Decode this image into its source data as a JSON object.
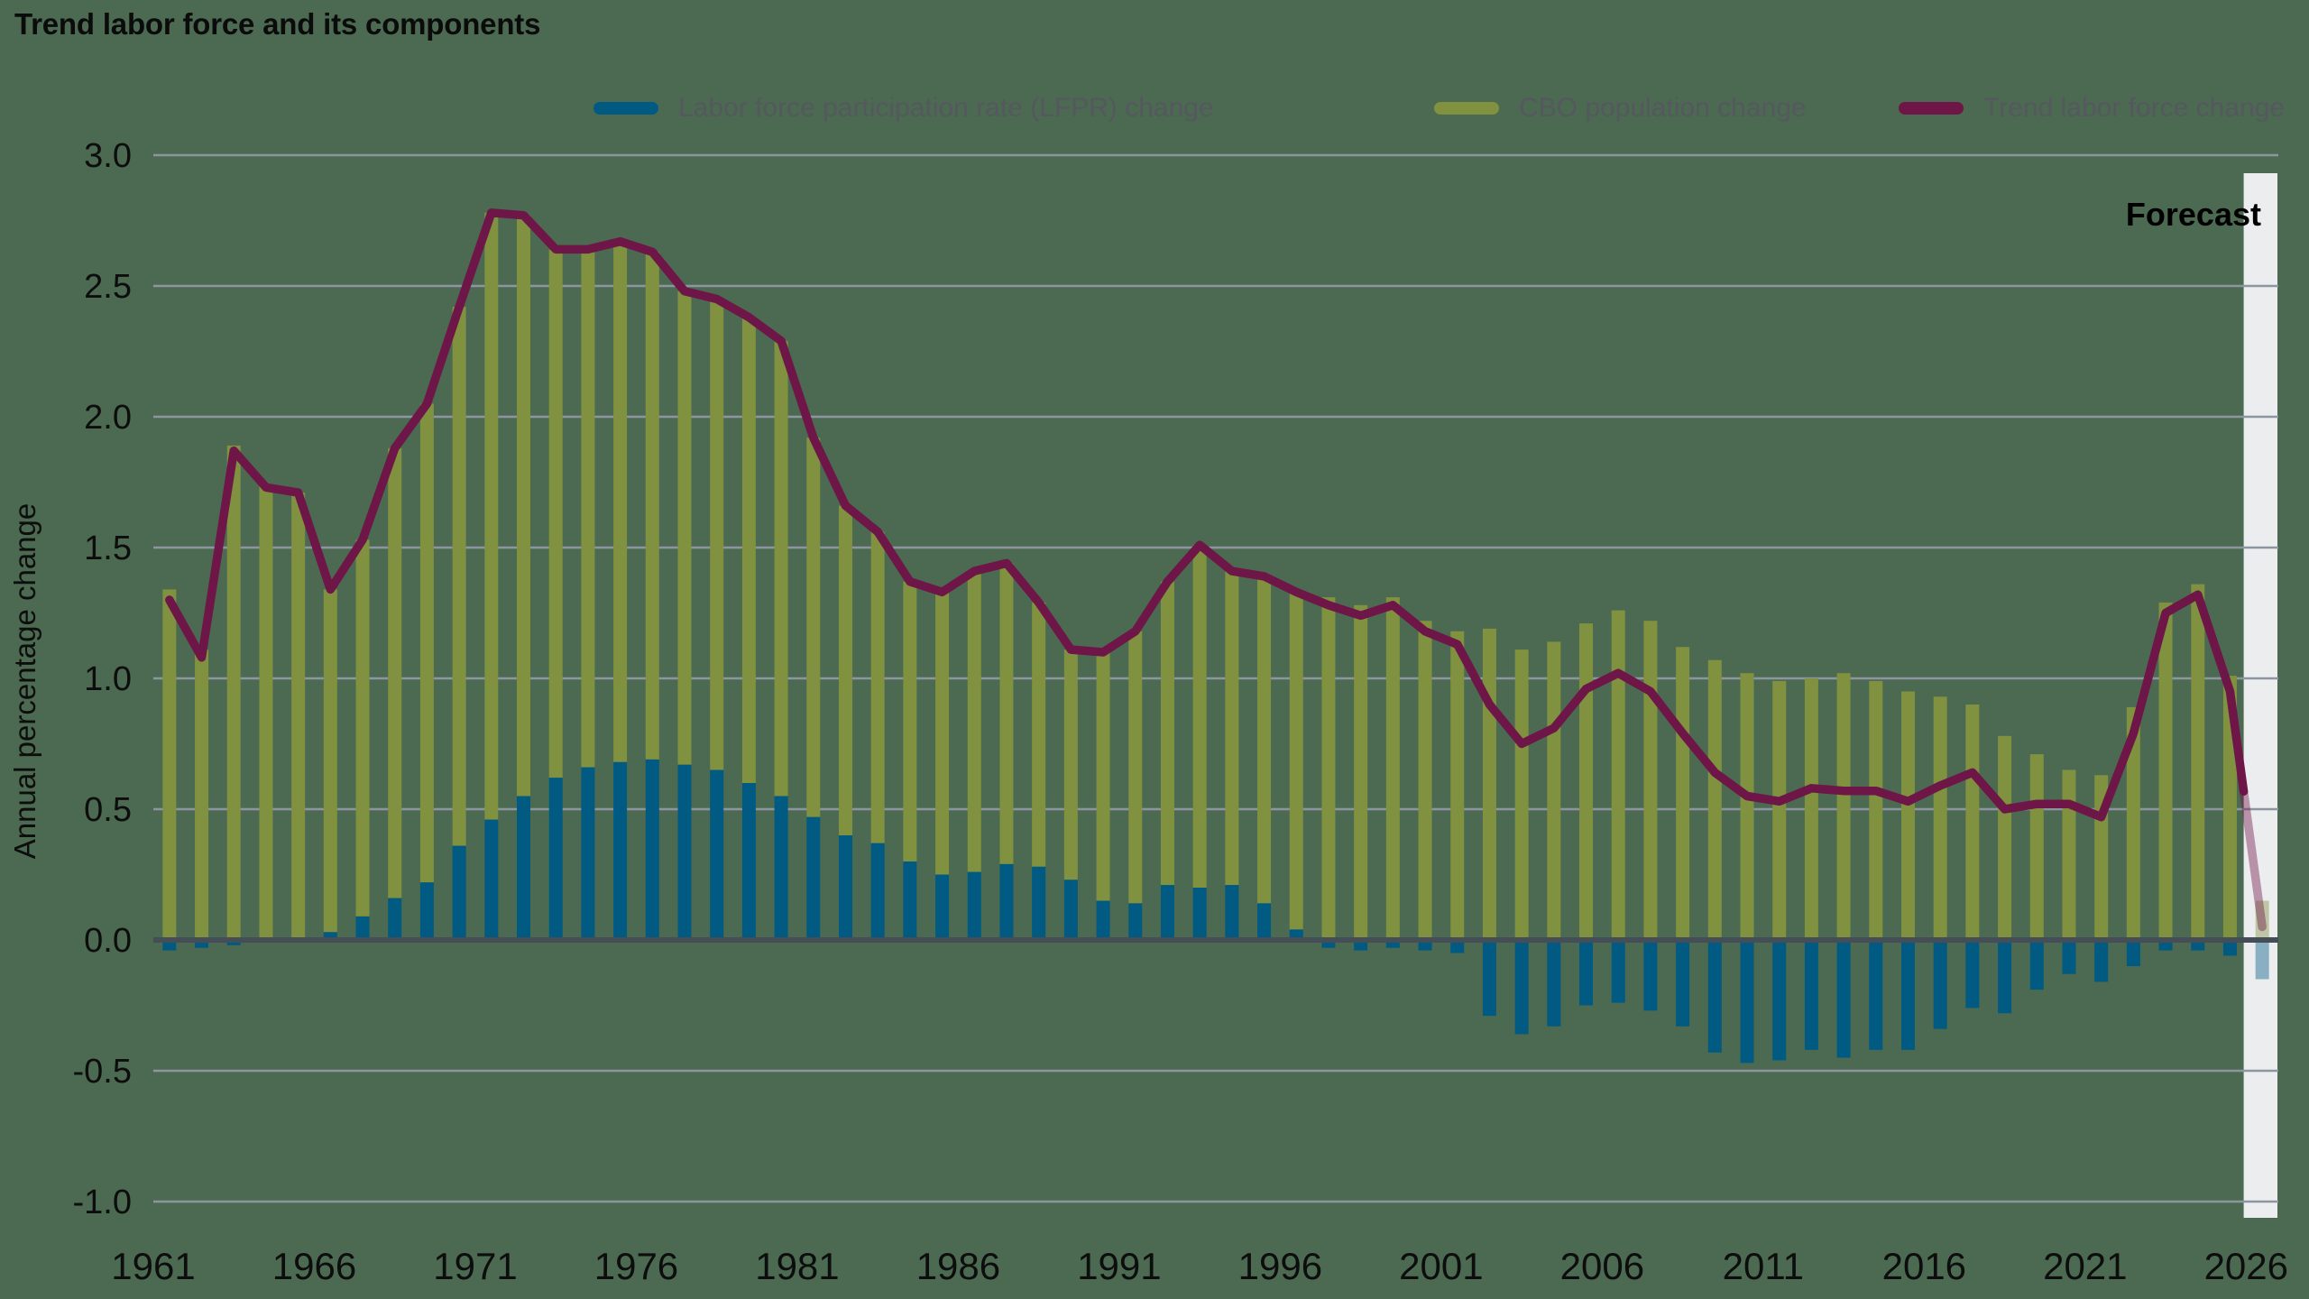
{
  "title": "Trend labor force and its components",
  "y_axis": {
    "label": "Annual percentage change",
    "tick_labels": [
      "3.0",
      "2.5",
      "2.0",
      "1.5",
      "1.0",
      "0.5",
      "0.0",
      "-0.5",
      "-1.0"
    ]
  },
  "forecast": {
    "label": "Forecast",
    "start_year": 2026
  },
  "legend": {
    "items": [
      {
        "label": "Labor force participation rate (LFPR) change",
        "color": "#005A82"
      },
      {
        "label": "CBO population change",
        "color": "#80913F"
      },
      {
        "label": "Trend labor force change",
        "color": "#6E1647"
      }
    ]
  },
  "colors": {
    "background": "#4B6A51",
    "gridline": "#8D95A0",
    "zero_line": "#454E57",
    "axis_text": "#0D0D0D",
    "title_text": "#0B0B0B",
    "legend_text": "#55585E",
    "forecast_band": "#ECEDEF",
    "forecast_text": "#000000",
    "lfpr_bar": "#005A82",
    "population_bar": "#80913F",
    "trend_line": "#6E1647"
  },
  "chart_data": {
    "type": "bar",
    "subtype": "stacked-bars-with-line",
    "title": "Trend labor force and its components",
    "ylabel": "Annual percentage change",
    "ylim": [
      -1.0,
      3.0
    ],
    "y_tick_step": 0.5,
    "grid": true,
    "legend_position": "top",
    "x_start": 1961,
    "x_end": 2026,
    "x_tick_years": [
      1961,
      1966,
      1971,
      1976,
      1981,
      1986,
      1991,
      1996,
      2001,
      2006,
      2011,
      2016,
      2021,
      2026
    ],
    "forecast_year": 2026,
    "series": [
      {
        "name": "Labor force participation rate (LFPR) change",
        "type": "bar",
        "values": [
          -0.04,
          -0.03,
          -0.02,
          -0.01,
          0.01,
          0.03,
          0.09,
          0.16,
          0.22,
          0.36,
          0.46,
          0.55,
          0.62,
          0.66,
          0.68,
          0.69,
          0.67,
          0.65,
          0.6,
          0.55,
          0.47,
          0.4,
          0.37,
          0.3,
          0.25,
          0.26,
          0.29,
          0.28,
          0.23,
          0.15,
          0.14,
          0.21,
          0.2,
          0.21,
          0.14,
          0.04,
          -0.03,
          -0.04,
          -0.03,
          -0.04,
          -0.05,
          -0.29,
          -0.36,
          -0.33,
          -0.25,
          -0.24,
          -0.27,
          -0.33,
          -0.43,
          -0.47,
          -0.46,
          -0.42,
          -0.45,
          -0.42,
          -0.42,
          -0.34,
          -0.26,
          -0.28,
          -0.19,
          -0.13,
          -0.16,
          -0.1,
          -0.04,
          -0.04,
          -0.06,
          -0.15
        ]
      },
      {
        "name": "CBO population change",
        "type": "bar",
        "stacked_on_positive_lfpr": true,
        "values": [
          1.34,
          1.11,
          1.89,
          1.74,
          1.7,
          1.31,
          1.44,
          1.72,
          1.83,
          2.06,
          2.32,
          2.22,
          2.02,
          1.98,
          1.99,
          1.94,
          1.81,
          1.8,
          1.78,
          1.74,
          1.45,
          1.26,
          1.19,
          1.07,
          1.08,
          1.15,
          1.15,
          1.01,
          0.88,
          0.95,
          1.04,
          1.16,
          1.31,
          1.2,
          1.25,
          1.29,
          1.31,
          1.28,
          1.31,
          1.22,
          1.18,
          1.19,
          1.11,
          1.14,
          1.21,
          1.26,
          1.22,
          1.12,
          1.07,
          1.02,
          0.99,
          1.0,
          1.02,
          0.99,
          0.95,
          0.93,
          0.9,
          0.78,
          0.71,
          0.65,
          0.63,
          0.89,
          1.29,
          1.36,
          1.01,
          0.15
        ]
      },
      {
        "name": "Trend labor force change",
        "type": "line",
        "values": [
          1.3,
          1.08,
          1.87,
          1.73,
          1.71,
          1.34,
          1.53,
          1.88,
          2.05,
          2.42,
          2.78,
          2.77,
          2.64,
          2.64,
          2.67,
          2.63,
          2.48,
          2.45,
          2.38,
          2.29,
          1.92,
          1.66,
          1.56,
          1.37,
          1.33,
          1.41,
          1.44,
          1.29,
          1.11,
          1.1,
          1.18,
          1.37,
          1.51,
          1.41,
          1.39,
          1.33,
          1.28,
          1.24,
          1.28,
          1.18,
          1.13,
          0.9,
          0.75,
          0.81,
          0.96,
          1.02,
          0.95,
          0.79,
          0.64,
          0.55,
          0.53,
          0.58,
          0.57,
          0.57,
          0.53,
          0.59,
          0.64,
          0.5,
          0.52,
          0.52,
          0.47,
          0.79,
          1.25,
          1.32,
          0.95,
          0.05
        ]
      }
    ]
  }
}
